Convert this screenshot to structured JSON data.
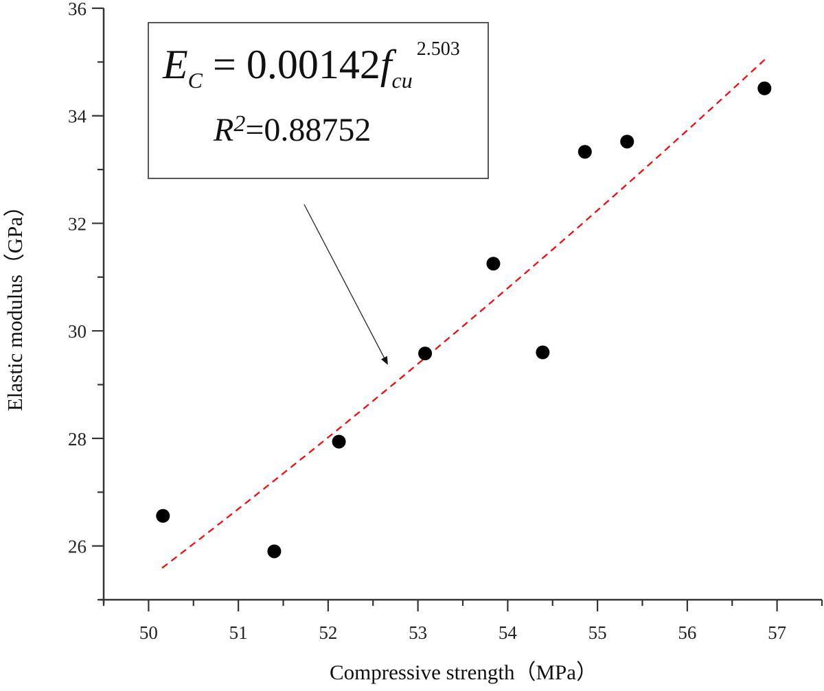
{
  "chart_data": {
    "type": "scatter",
    "xlabel": "Compressive strength（MPa）",
    "ylabel": "Elastic modulus（GPa）",
    "xlim": [
      49.5,
      57.5
    ],
    "ylim": [
      25,
      36
    ],
    "xticks": [
      "50",
      "51",
      "52",
      "53",
      "54",
      "55",
      "56",
      "57"
    ],
    "yticks": [
      "26",
      "28",
      "30",
      "32",
      "34",
      "36"
    ],
    "grid": false,
    "points": [
      {
        "x": 50.16,
        "y": 26.56
      },
      {
        "x": 51.4,
        "y": 25.9
      },
      {
        "x": 52.12,
        "y": 27.94
      },
      {
        "x": 53.08,
        "y": 29.58
      },
      {
        "x": 53.84,
        "y": 31.25
      },
      {
        "x": 54.39,
        "y": 29.6
      },
      {
        "x": 54.86,
        "y": 33.33
      },
      {
        "x": 55.33,
        "y": 33.52
      },
      {
        "x": 56.86,
        "y": 34.51
      }
    ],
    "fit": {
      "coefficient": 0.00142,
      "exponent": 2.503,
      "x_range": [
        50.15,
        56.88
      ],
      "style": "dashed",
      "color": "#ff0000"
    },
    "point_color": "#000000",
    "annotation": {
      "lhs": "E",
      "lhs_sub": "C",
      "equals": "=",
      "coef": "0.00142",
      "var": "f",
      "var_sub": "cu",
      "exp": "2.503",
      "r_label": "R",
      "r_sup": "2",
      "r_value": "=0.88752"
    }
  }
}
